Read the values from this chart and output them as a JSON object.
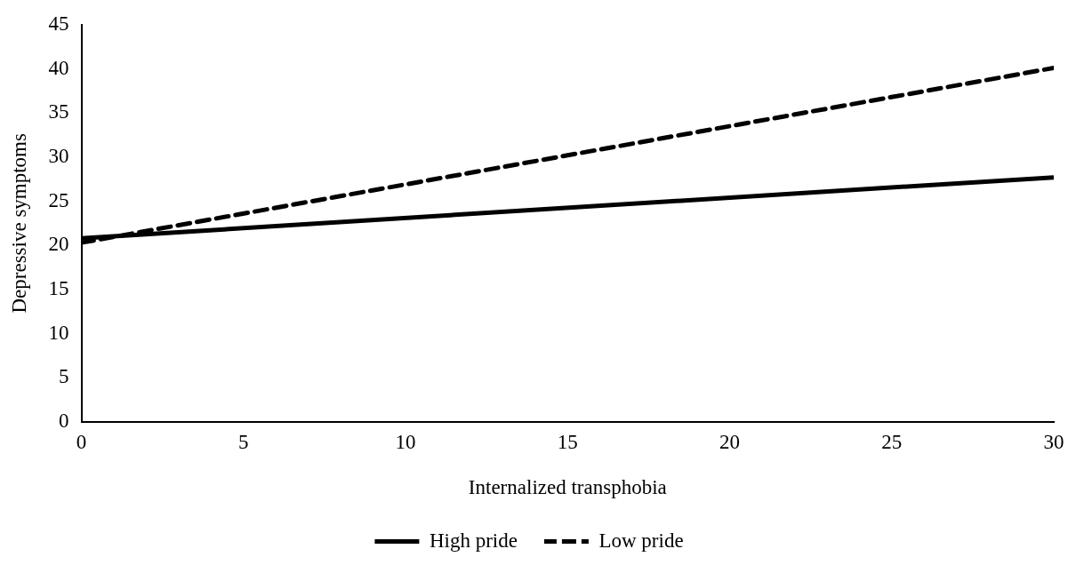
{
  "chart_data": {
    "type": "line",
    "xlabel": "Internalized transphobia",
    "ylabel": "Depressive symptoms",
    "x": [
      0,
      30
    ],
    "series": [
      {
        "name": "High pride",
        "color": "#000000",
        "values": [
          20.8,
          27.7
        ],
        "line_style": "solid"
      },
      {
        "name": "Low pride",
        "color": "#000000",
        "values": [
          20.3,
          40.1
        ],
        "line_style": "dashed"
      }
    ],
    "xlim": [
      0,
      30
    ],
    "xticks": [
      0,
      5,
      10,
      15,
      20,
      25,
      30
    ],
    "ylim": [
      0,
      45
    ],
    "yticks": [
      0,
      5,
      10,
      15,
      20,
      25,
      30,
      35,
      40,
      45
    ],
    "grid": false,
    "legend": "bottom",
    "marker": "none"
  }
}
